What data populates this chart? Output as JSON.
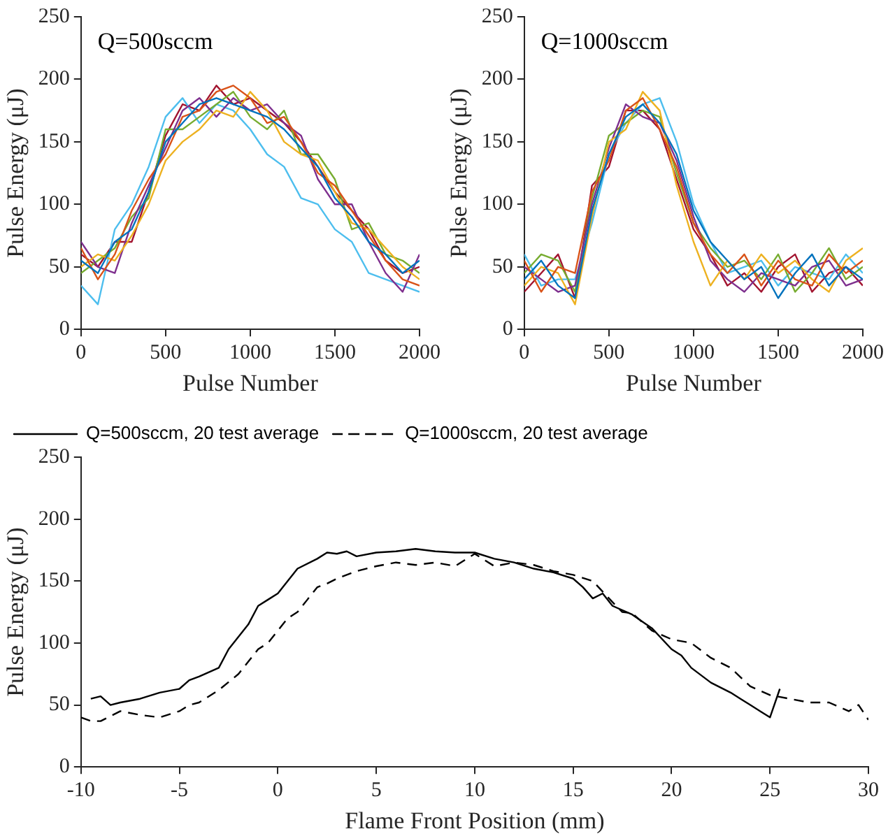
{
  "chart_data": [
    {
      "type": "line",
      "xlabel": "Pulse Number",
      "ylabel": "Pulse Energy (μJ)",
      "annotations": [
        "Q=500sccm"
      ],
      "x": [
        0,
        100,
        200,
        300,
        400,
        500,
        600,
        700,
        800,
        900,
        1000,
        1100,
        1200,
        1300,
        1400,
        1500,
        1600,
        1700,
        1800,
        1900,
        2000
      ],
      "xlim": [
        0,
        2000
      ],
      "xticks": [
        0,
        500,
        1000,
        1500,
        2000
      ],
      "ylim": [
        0,
        250
      ],
      "yticks": [
        0,
        50,
        100,
        150,
        200,
        250
      ],
      "grid": false,
      "legend": false,
      "marker": "none",
      "series": [
        {
          "color": "#0072bd",
          "values": [
            55,
            45,
            70,
            80,
            110,
            150,
            165,
            180,
            185,
            180,
            175,
            170,
            160,
            145,
            130,
            105,
            90,
            70,
            60,
            45,
            55
          ]
        },
        {
          "color": "#d95319",
          "values": [
            65,
            40,
            60,
            95,
            120,
            140,
            170,
            175,
            190,
            195,
            185,
            165,
            170,
            150,
            125,
            115,
            95,
            75,
            55,
            40,
            35
          ]
        },
        {
          "color": "#edb120",
          "values": [
            50,
            60,
            55,
            75,
            100,
            135,
            150,
            160,
            175,
            170,
            190,
            175,
            150,
            140,
            135,
            110,
            85,
            80,
            65,
            50,
            40
          ]
        },
        {
          "color": "#7e2f8e",
          "values": [
            70,
            50,
            45,
            85,
            115,
            145,
            175,
            185,
            170,
            185,
            175,
            180,
            165,
            155,
            120,
            100,
            100,
            70,
            45,
            30,
            60
          ]
        },
        {
          "color": "#77ac30",
          "values": [
            45,
            55,
            65,
            90,
            105,
            160,
            160,
            170,
            180,
            190,
            170,
            160,
            175,
            140,
            140,
            120,
            80,
            85,
            60,
            55,
            45
          ]
        },
        {
          "color": "#4dbeee",
          "values": [
            35,
            20,
            80,
            100,
            130,
            170,
            185,
            165,
            180,
            175,
            160,
            140,
            130,
            105,
            100,
            80,
            70,
            45,
            40,
            35,
            30
          ]
        },
        {
          "color": "#a2142f",
          "values": [
            60,
            50,
            70,
            70,
            110,
            155,
            180,
            175,
            195,
            180,
            185,
            175,
            165,
            150,
            130,
            110,
            95,
            80,
            55,
            45,
            50
          ]
        }
      ]
    },
    {
      "type": "line",
      "xlabel": "Pulse Number",
      "ylabel": "Pulse Energy (μJ)",
      "annotations": [
        "Q=1000sccm"
      ],
      "x": [
        0,
        100,
        200,
        300,
        400,
        500,
        600,
        700,
        800,
        900,
        1000,
        1100,
        1200,
        1300,
        1400,
        1500,
        1600,
        1700,
        1800,
        1900,
        2000
      ],
      "xlim": [
        0,
        2000
      ],
      "xticks": [
        0,
        500,
        1000,
        1500,
        2000
      ],
      "ylim": [
        0,
        250
      ],
      "yticks": [
        0,
        50,
        100,
        150,
        200,
        250
      ],
      "grid": false,
      "legend": false,
      "marker": "none",
      "series": [
        {
          "color": "#0072bd",
          "values": [
            40,
            55,
            35,
            25,
            95,
            140,
            170,
            180,
            165,
            140,
            95,
            70,
            55,
            40,
            50,
            25,
            45,
            60,
            35,
            50,
            40
          ]
        },
        {
          "color": "#d95319",
          "values": [
            55,
            30,
            50,
            45,
            110,
            135,
            175,
            185,
            160,
            130,
            85,
            60,
            45,
            60,
            35,
            55,
            40,
            35,
            60,
            45,
            55
          ]
        },
        {
          "color": "#edb120",
          "values": [
            35,
            50,
            45,
            20,
            90,
            150,
            160,
            190,
            175,
            115,
            70,
            35,
            55,
            40,
            60,
            45,
            55,
            40,
            30,
            55,
            65
          ]
        },
        {
          "color": "#7e2f8e",
          "values": [
            50,
            40,
            30,
            35,
            100,
            145,
            180,
            170,
            165,
            135,
            90,
            55,
            40,
            30,
            45,
            40,
            35,
            50,
            55,
            35,
            40
          ]
        },
        {
          "color": "#77ac30",
          "values": [
            45,
            60,
            55,
            30,
            105,
            155,
            165,
            175,
            170,
            125,
            85,
            65,
            50,
            55,
            40,
            60,
            30,
            45,
            65,
            40,
            50
          ]
        },
        {
          "color": "#4dbeee",
          "values": [
            60,
            35,
            40,
            40,
            85,
            140,
            165,
            180,
            185,
            150,
            100,
            70,
            45,
            50,
            55,
            35,
            50,
            45,
            40,
            60,
            45
          ]
        },
        {
          "color": "#a2142f",
          "values": [
            30,
            45,
            60,
            25,
            115,
            130,
            175,
            175,
            160,
            120,
            80,
            60,
            35,
            45,
            30,
            50,
            60,
            30,
            45,
            50,
            35
          ]
        }
      ]
    },
    {
      "type": "line",
      "xlabel": "Flame Front Position (mm)",
      "ylabel": "Pulse Energy (μJ)",
      "xlim": [
        -10,
        30
      ],
      "xticks": [
        -10,
        -5,
        0,
        5,
        10,
        15,
        20,
        25,
        30
      ],
      "ylim": [
        0,
        250
      ],
      "yticks": [
        0,
        50,
        100,
        150,
        200,
        250
      ],
      "grid": false,
      "legend": "top left",
      "marker": "none",
      "series": [
        {
          "name": "Q=500sccm, 20 test average",
          "color": "#000000",
          "line_style": "solid",
          "x": [
            -9.5,
            -9,
            -8.5,
            -8,
            -7,
            -6,
            -5,
            -4.5,
            -4,
            -3,
            -2.5,
            -2,
            -1.5,
            -1,
            -0.5,
            0,
            0.5,
            1,
            2,
            2.5,
            3,
            3.5,
            4,
            5,
            6,
            7,
            8,
            9,
            10,
            11,
            12,
            13,
            14,
            15,
            15.5,
            16,
            16.5,
            17,
            18,
            19,
            20,
            20.5,
            21,
            22,
            23,
            23.5,
            24,
            24.5,
            25,
            25.5
          ],
          "values": [
            55,
            57,
            50,
            52,
            55,
            60,
            63,
            70,
            73,
            80,
            95,
            105,
            115,
            130,
            135,
            140,
            150,
            160,
            168,
            173,
            172,
            174,
            170,
            173,
            174,
            176,
            174,
            173,
            173,
            168,
            165,
            160,
            157,
            152,
            145,
            136,
            140,
            130,
            123,
            112,
            95,
            90,
            80,
            68,
            60,
            55,
            50,
            45,
            40,
            63
          ]
        },
        {
          "name": "Q=1000sccm, 20 test average",
          "color": "#000000",
          "line_style": "dashed",
          "x": [
            -10,
            -9.5,
            -9,
            -8,
            -7,
            -6,
            -5,
            -4.5,
            -4,
            -3,
            -2,
            -1,
            -0.5,
            0,
            0.5,
            1,
            1.5,
            2,
            2.5,
            3,
            4,
            5,
            6,
            7,
            8,
            9,
            10,
            11,
            12,
            13,
            14,
            15,
            16,
            17,
            17.5,
            18,
            19,
            20,
            21,
            22,
            23,
            24,
            25,
            26,
            27,
            28,
            29,
            29.5,
            30
          ],
          "values": [
            40,
            37,
            37,
            45,
            42,
            40,
            45,
            50,
            52,
            62,
            75,
            95,
            100,
            110,
            120,
            125,
            135,
            145,
            148,
            152,
            158,
            162,
            165,
            163,
            165,
            162,
            172,
            162,
            165,
            163,
            158,
            155,
            150,
            133,
            125,
            124,
            110,
            103,
            100,
            88,
            80,
            65,
            58,
            55,
            52,
            52,
            45,
            50,
            38
          ]
        }
      ]
    }
  ]
}
